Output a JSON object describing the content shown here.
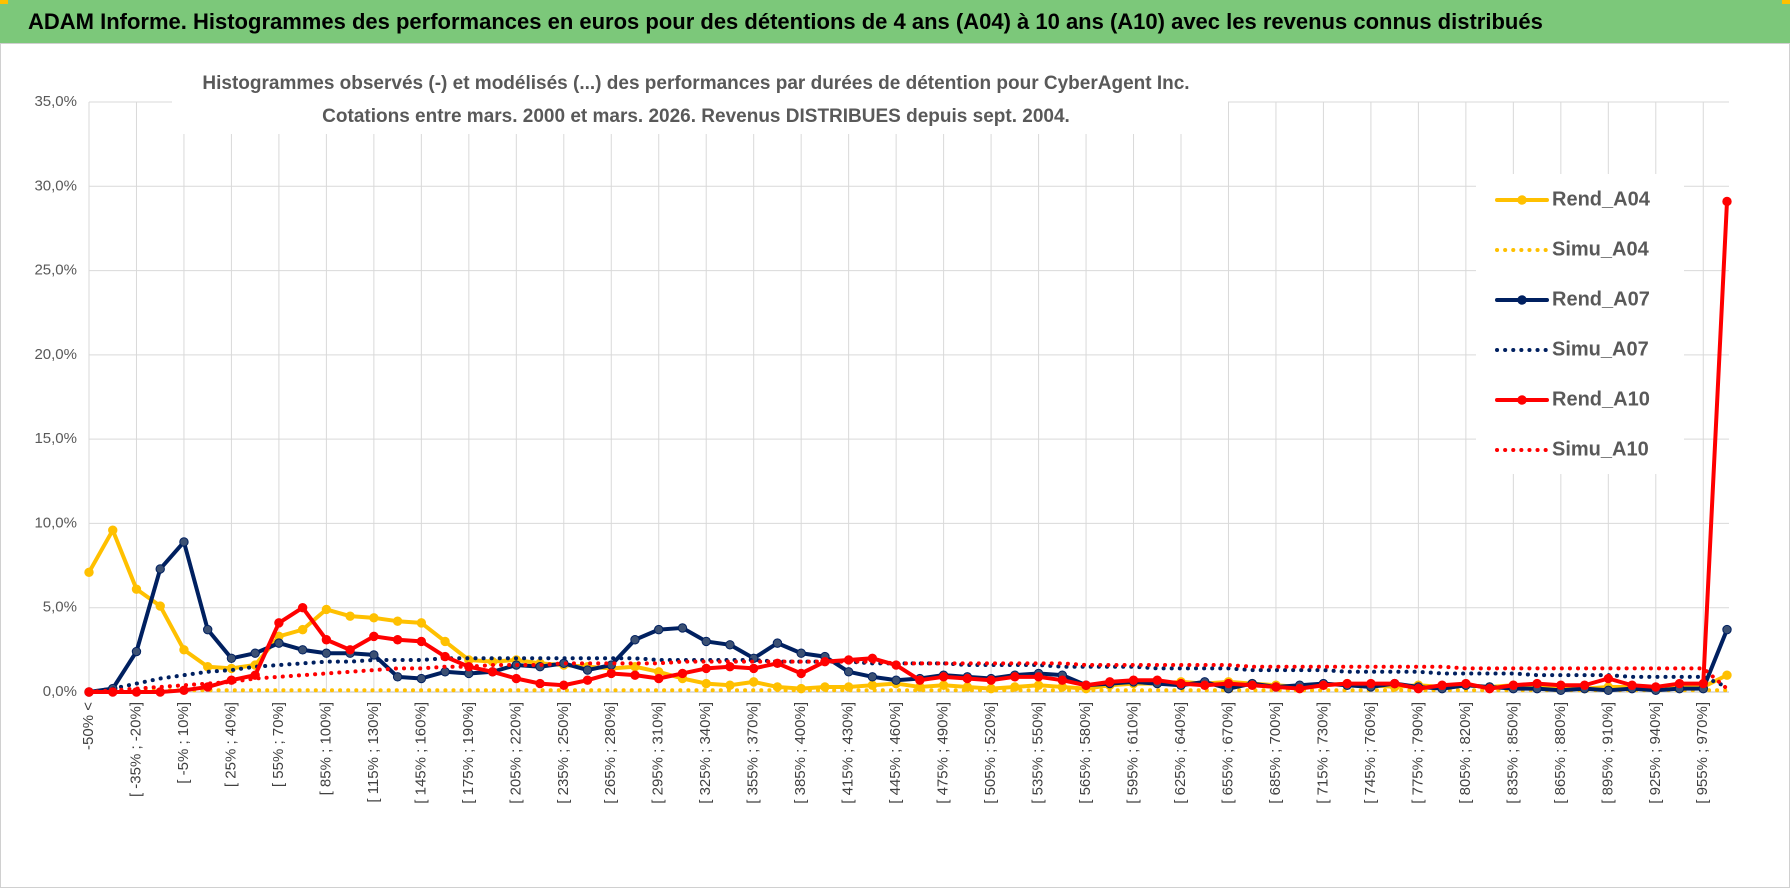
{
  "header": {
    "title": "ADAM Informe. Histogrammes des performances en euros pour des détentions de 4 ans (A04) à 10 ans (A10) avec les revenus connus distribués"
  },
  "chart_data": {
    "type": "line",
    "title": "Histogrammes observés (-) et modélisés (...) des performances par durées de détention pour CyberAgent Inc.",
    "subtitle": "Cotations entre mars. 2000 et mars. 2026. Revenus DISTRIBUES depuis sept. 2004.",
    "categories": [
      "-50% <",
      null,
      "[ -35% ; -20%]",
      null,
      "[ -5% ; 10%]",
      null,
      "[ 25% ; 40%]",
      null,
      "[ 55% ; 70%]",
      null,
      "[ 85% ; 100%]",
      null,
      "[ 115% ; 130%]",
      null,
      "[ 145% ; 160%]",
      null,
      "[ 175% ; 190%]",
      null,
      "[ 205% ; 220%]",
      null,
      "[ 235% ; 250%]",
      null,
      "[ 265% ; 280%]",
      null,
      "[ 295% ; 310%]",
      null,
      "[ 325% ; 340%]",
      null,
      "[ 355% ; 370%]",
      null,
      "[ 385% ; 400%]",
      null,
      "[ 415% ; 430%]",
      null,
      "[ 445% ; 460%]",
      null,
      "[ 475% ; 490%]",
      null,
      "[ 505% ; 520%]",
      null,
      "[ 535% ; 550%]",
      null,
      "[ 565% ; 580%]",
      null,
      "[ 595% ; 610%]",
      null,
      "[ 625% ; 640%]",
      null,
      "[ 655% ; 670%]",
      null,
      "[ 685% ; 700%]",
      null,
      "[ 715% ; 730%]",
      null,
      "[ 745% ; 760%]",
      null,
      "[ 775% ; 790%]",
      null,
      "[ 805% ; 820%]",
      null,
      "[ 835% ; 850%]",
      null,
      "[ 865% ; 880%]",
      null,
      "[ 895% ; 910%]",
      null,
      "[ 925% ; 940%]",
      null,
      "[ 955% ; 970%]",
      null
    ],
    "series": [
      {
        "name": "Rend_A04",
        "color": "#ffc000",
        "line_style": "solid",
        "markers": true,
        "values": [
          7.1,
          9.6,
          6.1,
          5.1,
          2.5,
          1.5,
          1.4,
          1.6,
          3.3,
          3.7,
          4.9,
          4.5,
          4.4,
          4.2,
          4.1,
          3.0,
          1.9,
          1.8,
          1.9,
          1.7,
          1.6,
          1.5,
          1.4,
          1.5,
          1.2,
          0.8,
          0.5,
          0.4,
          0.6,
          0.3,
          0.2,
          0.3,
          0.3,
          0.4,
          0.5,
          0.3,
          0.4,
          0.3,
          0.2,
          0.3,
          0.4,
          0.3,
          0.2,
          0.4,
          0.5,
          0.5,
          0.6,
          0.5,
          0.6,
          0.5,
          0.4,
          0.3,
          0.4,
          0.5,
          0.4,
          0.3,
          0.4,
          0.3,
          0.4,
          0.3,
          0.4,
          0.3,
          0.3,
          0.2,
          0.3,
          0.3,
          0.2,
          0.3,
          0.3,
          1.0
        ]
      },
      {
        "name": "Simu_A04",
        "color": "#ffc000",
        "line_style": "dotted",
        "markers": false,
        "values": [
          0,
          0.1,
          0.1,
          0.1,
          0.1,
          0.1,
          0.1,
          0.1,
          0.1,
          0.1,
          0.1,
          0.1,
          0.1,
          0.1,
          0.1,
          0.1,
          0.1,
          0.1,
          0.1,
          0.1,
          0.1,
          0.1,
          0.1,
          0.1,
          0.1,
          0.1,
          0.1,
          0.1,
          0.1,
          0.1,
          0.1,
          0.1,
          0.1,
          0.1,
          0.1,
          0.1,
          0.1,
          0.1,
          0.1,
          0.1,
          0.1,
          0.1,
          0.1,
          0.1,
          0.1,
          0.1,
          0.1,
          0.1,
          0.1,
          0.1,
          0.1,
          0.1,
          0.1,
          0.1,
          0.1,
          0.1,
          0.1,
          0.1,
          0.1,
          0.1,
          0.1,
          0.1,
          0.1,
          0.1,
          0.1,
          0.1,
          0.1,
          0.1,
          0.1,
          0.1
        ]
      },
      {
        "name": "Rend_A07",
        "color": "#002060",
        "line_style": "solid",
        "markers": true,
        "values": [
          0,
          0.2,
          2.4,
          7.3,
          8.9,
          3.7,
          2.0,
          2.3,
          2.9,
          2.5,
          2.3,
          2.3,
          2.2,
          0.9,
          0.8,
          1.2,
          1.1,
          1.2,
          1.6,
          1.5,
          1.7,
          1.3,
          1.6,
          3.1,
          3.7,
          3.8,
          3.0,
          2.8,
          2.0,
          2.9,
          2.3,
          2.1,
          1.2,
          0.9,
          0.7,
          0.8,
          1.0,
          0.9,
          0.8,
          1.0,
          1.1,
          1.0,
          0.4,
          0.5,
          0.6,
          0.5,
          0.4,
          0.6,
          0.2,
          0.5,
          0.3,
          0.4,
          0.5,
          0.4,
          0.3,
          0.5,
          0.3,
          0.2,
          0.4,
          0.3,
          0.2,
          0.2,
          0.1,
          0.2,
          0.1,
          0.2,
          0.1,
          0.2,
          0.2,
          3.7
        ]
      },
      {
        "name": "Simu_A07",
        "color": "#002060",
        "line_style": "dotted",
        "markers": false,
        "values": [
          0,
          0.2,
          0.5,
          0.8,
          1.0,
          1.2,
          1.3,
          1.5,
          1.6,
          1.7,
          1.8,
          1.8,
          1.9,
          1.9,
          1.9,
          2.0,
          2.0,
          2.0,
          2.0,
          2.0,
          2.0,
          2.0,
          2.0,
          2.0,
          1.9,
          1.9,
          1.9,
          1.9,
          1.9,
          1.8,
          1.8,
          1.8,
          1.8,
          1.7,
          1.7,
          1.7,
          1.7,
          1.6,
          1.6,
          1.6,
          1.6,
          1.5,
          1.5,
          1.5,
          1.5,
          1.4,
          1.4,
          1.4,
          1.4,
          1.3,
          1.3,
          1.3,
          1.3,
          1.2,
          1.2,
          1.2,
          1.2,
          1.1,
          1.1,
          1.1,
          1.1,
          1.0,
          1.0,
          1.0,
          1.0,
          0.9,
          0.9,
          0.9,
          0.9,
          0.3
        ]
      },
      {
        "name": "Rend_A10",
        "color": "#ff0000",
        "line_style": "solid",
        "markers": true,
        "values": [
          0,
          0,
          0,
          0,
          0.1,
          0.3,
          0.7,
          1.0,
          4.1,
          5.0,
          3.1,
          2.5,
          3.3,
          3.1,
          3.0,
          2.1,
          1.5,
          1.2,
          0.8,
          0.5,
          0.4,
          0.7,
          1.1,
          1.0,
          0.8,
          1.1,
          1.4,
          1.5,
          1.4,
          1.7,
          1.1,
          1.8,
          1.9,
          2.0,
          1.6,
          0.7,
          0.9,
          0.8,
          0.7,
          0.9,
          0.9,
          0.7,
          0.4,
          0.6,
          0.7,
          0.7,
          0.5,
          0.4,
          0.5,
          0.4,
          0.3,
          0.2,
          0.4,
          0.5,
          0.5,
          0.5,
          0.2,
          0.4,
          0.5,
          0.2,
          0.4,
          0.5,
          0.4,
          0.4,
          0.8,
          0.4,
          0.3,
          0.5,
          0.5,
          29.1
        ]
      },
      {
        "name": "Simu_A10",
        "color": "#ff0000",
        "line_style": "dotted",
        "markers": false,
        "values": [
          0,
          0.1,
          0.2,
          0.3,
          0.4,
          0.5,
          0.6,
          0.8,
          0.9,
          1.0,
          1.1,
          1.2,
          1.3,
          1.4,
          1.4,
          1.5,
          1.5,
          1.6,
          1.6,
          1.6,
          1.7,
          1.7,
          1.7,
          1.7,
          1.7,
          1.8,
          1.8,
          1.8,
          1.8,
          1.8,
          1.8,
          1.8,
          1.8,
          1.8,
          1.7,
          1.7,
          1.7,
          1.7,
          1.7,
          1.7,
          1.7,
          1.7,
          1.6,
          1.6,
          1.6,
          1.6,
          1.6,
          1.6,
          1.6,
          1.5,
          1.5,
          1.5,
          1.5,
          1.5,
          1.5,
          1.5,
          1.5,
          1.5,
          1.4,
          1.4,
          1.4,
          1.4,
          1.4,
          1.4,
          1.4,
          1.4,
          1.4,
          1.4,
          1.4,
          0.2
        ]
      }
    ],
    "ylim": [
      0,
      35
    ],
    "yticks": [
      {
        "value": 0,
        "label": "0,0%"
      },
      {
        "value": 5,
        "label": "5,0%"
      },
      {
        "value": 10,
        "label": "10,0%"
      },
      {
        "value": 15,
        "label": "15,0%"
      },
      {
        "value": 20,
        "label": "20,0%"
      },
      {
        "value": 25,
        "label": "25,0%"
      },
      {
        "value": 30,
        "label": "30,0%"
      },
      {
        "value": 35,
        "label": "35,0%"
      }
    ],
    "grid": true,
    "legend": "right"
  }
}
